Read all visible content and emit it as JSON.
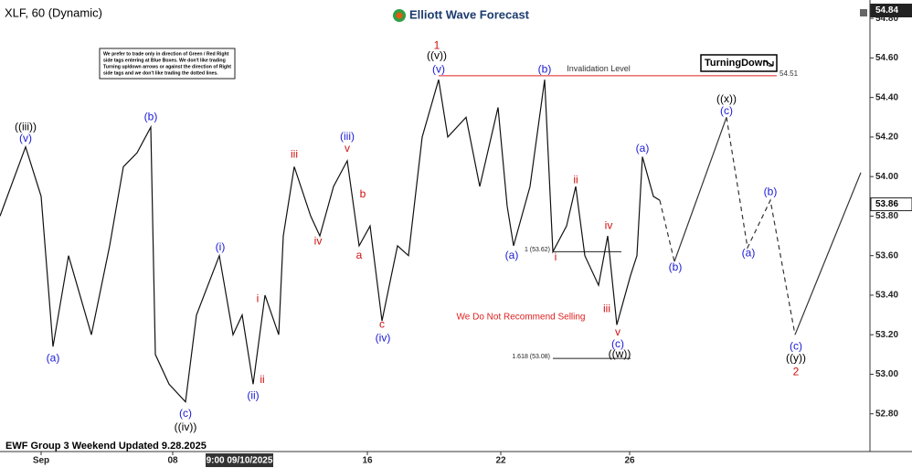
{
  "chart_data": {
    "type": "line",
    "title": "XLF, 60 (Dynamic)",
    "brand": "Elliott Wave Forecast",
    "footer": "EWF Group 3 Weekend Updated 9.28.2025",
    "cursor_date": {
      "value": 262,
      "label": "9:00 09/10/2025"
    },
    "note_lines": [
      "We prefer to trade only in direction of Green / Red Right",
      "side tags entering at Blue Boxes. We don't like trading",
      "Turning up/down arrows or against the direction of Right",
      "side tags and we don't like trading the dotted lines."
    ],
    "warning": "We Do Not Recommend Selling",
    "badge": "TurningDown",
    "xlim": [
      0,
      952
    ],
    "ylim": [
      52.66,
      54.87
    ],
    "xticks": [
      {
        "value": 45,
        "label": "Sep"
      },
      {
        "value": 189,
        "label": "08"
      },
      {
        "value": 402,
        "label": "16"
      },
      {
        "value": 548,
        "label": "22"
      },
      {
        "value": 689,
        "label": "26"
      }
    ],
    "yticks": [
      {
        "value": 52.8,
        "label": "52.80"
      },
      {
        "value": 53.0,
        "label": "53.00"
      },
      {
        "value": 53.2,
        "label": "53.20"
      },
      {
        "value": 53.4,
        "label": "53.40"
      },
      {
        "value": 53.6,
        "label": "53.60"
      },
      {
        "value": 53.8,
        "label": "53.80"
      },
      {
        "value": 54.0,
        "label": "54.00"
      },
      {
        "value": 54.2,
        "label": "54.20"
      },
      {
        "value": 54.4,
        "label": "54.40"
      },
      {
        "value": 54.6,
        "label": "54.60"
      },
      {
        "value": 54.8,
        "label": "54.80"
      }
    ],
    "high_price": {
      "value": 54.84,
      "label": "54.84"
    },
    "last_price": {
      "value": 53.86,
      "label": "53.86"
    },
    "price": {
      "color": "#111111",
      "x": [
        0,
        28,
        45,
        58,
        75,
        100,
        120,
        135,
        150,
        165,
        170,
        185,
        203,
        215,
        240,
        255,
        265,
        277,
        290,
        305,
        310,
        322,
        340,
        350,
        365,
        380,
        393,
        405,
        418,
        435,
        447,
        462,
        480,
        490,
        510,
        525,
        545,
        555,
        562,
        580,
        596,
        605,
        620,
        630,
        640,
        655,
        665,
        675,
        690,
        697,
        703,
        715,
        722
      ],
      "values": [
        53.8,
        54.15,
        53.9,
        53.14,
        53.6,
        53.2,
        53.65,
        54.05,
        54.12,
        54.25,
        53.1,
        52.95,
        52.86,
        53.3,
        53.6,
        53.2,
        53.3,
        52.95,
        53.4,
        53.2,
        53.7,
        54.05,
        53.8,
        53.7,
        53.95,
        54.08,
        53.65,
        53.75,
        53.27,
        53.65,
        53.6,
        54.2,
        54.49,
        54.2,
        54.3,
        53.95,
        54.35,
        53.85,
        53.65,
        53.95,
        54.49,
        53.62,
        53.75,
        53.95,
        53.6,
        53.45,
        53.7,
        53.25,
        53.5,
        53.6,
        54.1,
        53.9,
        53.88
      ]
    },
    "projection": [
      {
        "style": "dashed",
        "x": [
          722,
          738
        ],
        "values": [
          53.88,
          53.57
        ]
      },
      {
        "style": "solid",
        "x": [
          738,
          795
        ],
        "values": [
          53.57,
          54.3
        ]
      },
      {
        "style": "dashed",
        "x": [
          795,
          818,
          843,
          870
        ],
        "values": [
          54.3,
          53.64,
          53.88,
          53.2
        ]
      },
      {
        "style": "solid",
        "x": [
          870,
          942
        ],
        "values": [
          53.2,
          54.02
        ]
      }
    ],
    "levels": [
      {
        "label": "Invalidation Level",
        "value": 54.51,
        "value_label": "54.51",
        "x": [
          480,
          850
        ],
        "color": "#e02020"
      },
      {
        "label": "1 (53.62)",
        "value": 53.62,
        "x": [
          605,
          680
        ],
        "color": "#222222"
      },
      {
        "label": "1.618 (53.08)",
        "value": 53.08,
        "x": [
          605,
          690
        ],
        "color": "#222222"
      }
    ],
    "annotations": [
      {
        "text": "((iii))",
        "x": 28,
        "y": 54.25,
        "color": "#000000"
      },
      {
        "text": "(v)",
        "x": 28,
        "y": 54.19,
        "color": "#1a1ad6"
      },
      {
        "text": "(a)",
        "x": 58,
        "y": 53.08,
        "color": "#1a1ad6"
      },
      {
        "text": "(b)",
        "x": 165,
        "y": 54.3,
        "color": "#1a1ad6"
      },
      {
        "text": "(c)",
        "x": 203,
        "y": 52.8,
        "color": "#1a1ad6"
      },
      {
        "text": "((iv))",
        "x": 203,
        "y": 52.73,
        "color": "#000000"
      },
      {
        "text": "(i)",
        "x": 241,
        "y": 53.64,
        "color": "#1a1ad6"
      },
      {
        "text": "(ii)",
        "x": 277,
        "y": 52.89,
        "color": "#1a1ad6"
      },
      {
        "text": "i",
        "x": 282,
        "y": 53.38,
        "color": "#d01010"
      },
      {
        "text": "ii",
        "x": 287,
        "y": 52.97,
        "color": "#d01010"
      },
      {
        "text": "iii",
        "x": 322,
        "y": 54.11,
        "color": "#d01010"
      },
      {
        "text": "iv",
        "x": 348,
        "y": 53.67,
        "color": "#d01010"
      },
      {
        "text": "(iii)",
        "x": 380,
        "y": 54.2,
        "color": "#1a1ad6"
      },
      {
        "text": "v",
        "x": 380,
        "y": 54.14,
        "color": "#d01010"
      },
      {
        "text": "b",
        "x": 397,
        "y": 53.91,
        "color": "#d01010"
      },
      {
        "text": "a",
        "x": 393,
        "y": 53.6,
        "color": "#d01010"
      },
      {
        "text": "c",
        "x": 418,
        "y": 53.25,
        "color": "#d01010"
      },
      {
        "text": "(iv)",
        "x": 419,
        "y": 53.18,
        "color": "#1a1ad6"
      },
      {
        "text": "1",
        "x": 478,
        "y": 54.66,
        "color": "#d01010"
      },
      {
        "text": "((v))",
        "x": 478,
        "y": 54.61,
        "color": "#000000"
      },
      {
        "text": "(v)",
        "x": 480,
        "y": 54.54,
        "color": "#1a1ad6"
      },
      {
        "text": "(b)",
        "x": 596,
        "y": 54.54,
        "color": "#1a1ad6"
      },
      {
        "text": "(a)",
        "x": 560,
        "y": 53.6,
        "color": "#1a1ad6"
      },
      {
        "text": "i",
        "x": 608,
        "y": 53.59,
        "color": "#d01010"
      },
      {
        "text": "ii",
        "x": 630,
        "y": 53.98,
        "color": "#d01010"
      },
      {
        "text": "iv",
        "x": 666,
        "y": 53.75,
        "color": "#d01010"
      },
      {
        "text": "iii",
        "x": 664,
        "y": 53.33,
        "color": "#d01010"
      },
      {
        "text": "v",
        "x": 676,
        "y": 53.21,
        "color": "#d01010"
      },
      {
        "text": "(c)",
        "x": 676,
        "y": 53.15,
        "color": "#1a1ad6"
      },
      {
        "text": "((w))",
        "x": 678,
        "y": 53.1,
        "color": "#000000"
      },
      {
        "text": "(a)",
        "x": 703,
        "y": 54.14,
        "color": "#1a1ad6"
      },
      {
        "text": "(b)",
        "x": 739,
        "y": 53.54,
        "color": "#1a1ad6"
      },
      {
        "text": "((x))",
        "x": 795,
        "y": 54.39,
        "color": "#000000"
      },
      {
        "text": "(c)",
        "x": 795,
        "y": 54.33,
        "color": "#1a1ad6"
      },
      {
        "text": "(a)",
        "x": 819,
        "y": 53.61,
        "color": "#1a1ad6"
      },
      {
        "text": "(b)",
        "x": 843,
        "y": 53.92,
        "color": "#1a1ad6"
      },
      {
        "text": "(c)",
        "x": 871,
        "y": 53.14,
        "color": "#1a1ad6"
      },
      {
        "text": "((y))",
        "x": 871,
        "y": 53.08,
        "color": "#000000"
      },
      {
        "text": "2",
        "x": 871,
        "y": 53.01,
        "color": "#d01010"
      }
    ]
  }
}
